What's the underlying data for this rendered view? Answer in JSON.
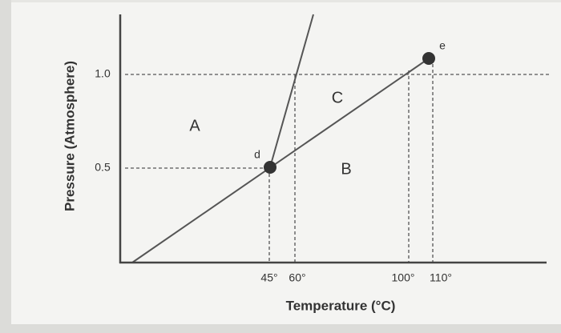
{
  "axes": {
    "y_label": "Pressure (Atmosphere)",
    "x_label": "Temperature (°C)",
    "y_ticks": [
      "1.0",
      "0.5"
    ],
    "x_ticks": [
      "45°",
      "60°",
      "100°",
      "110°"
    ]
  },
  "regions": [
    "A",
    "B",
    "C"
  ],
  "points": [
    "d",
    "e"
  ]
}
